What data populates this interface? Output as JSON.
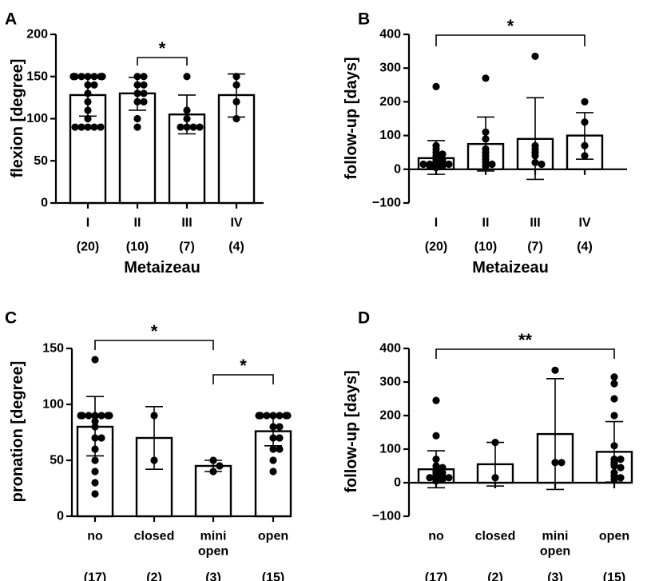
{
  "chart_data": [
    {
      "panel": "A",
      "type": "bar",
      "ylabel": "flexion [degree]",
      "xlabel": "Metaizeau",
      "ylim": [
        0,
        200
      ],
      "yticks": [
        0,
        50,
        100,
        150,
        200
      ],
      "zero_line": false,
      "categories": [
        "I",
        "II",
        "III",
        "IV"
      ],
      "counts": [
        "(20)",
        "(10)",
        "(7)",
        "(4)"
      ],
      "means": [
        128,
        130,
        105,
        128
      ],
      "sd_upper": [
        152,
        149,
        128,
        153
      ],
      "sd_lower": [
        103,
        110,
        82,
        102
      ],
      "points": [
        [
          150,
          150,
          150,
          150,
          150,
          150,
          150,
          150,
          150,
          140,
          140,
          130,
          120,
          110,
          100,
          90,
          90,
          90,
          90,
          90
        ],
        [
          150,
          150,
          140,
          140,
          130,
          130,
          120,
          120,
          100,
          90
        ],
        [
          150,
          110,
          100,
          90,
          90,
          90,
          90
        ],
        [
          150,
          140,
          120,
          100
        ]
      ],
      "significance": [
        {
          "from": 1,
          "to": 2,
          "label": "*"
        }
      ]
    },
    {
      "panel": "B",
      "type": "bar",
      "ylabel": "follow-up [days]",
      "xlabel": "Metaizeau",
      "ylim": [
        -100,
        400
      ],
      "yticks": [
        -100,
        0,
        100,
        200,
        300,
        400
      ],
      "zero_line": true,
      "categories": [
        "I",
        "II",
        "III",
        "IV"
      ],
      "counts": [
        "(20)",
        "(10)",
        "(7)",
        "(4)"
      ],
      "means": [
        33,
        75,
        90,
        100
      ],
      "sd_upper": [
        85,
        155,
        212,
        168
      ],
      "sd_lower": [
        -15,
        -5,
        -30,
        30
      ],
      "points": [
        [
          245,
          70,
          60,
          50,
          45,
          40,
          35,
          30,
          30,
          25,
          25,
          20,
          20,
          15,
          15,
          15,
          10,
          10,
          10,
          5
        ],
        [
          270,
          110,
          90,
          60,
          50,
          40,
          30,
          20,
          15,
          10
        ],
        [
          335,
          70,
          60,
          50,
          40,
          20,
          15
        ],
        [
          200,
          140,
          70,
          40
        ]
      ],
      "significance": [
        {
          "from": 0,
          "to": 3,
          "label": "*"
        }
      ]
    },
    {
      "panel": "C",
      "type": "bar",
      "ylabel": "pronation [degree]",
      "xlabel": "",
      "ylim": [
        0,
        150
      ],
      "yticks": [
        0,
        50,
        100,
        150
      ],
      "zero_line": false,
      "categories": [
        "no",
        "closed",
        "mini\nopen",
        "open"
      ],
      "counts": [
        "(17)",
        "(2)",
        "(3)",
        "(15)"
      ],
      "means": [
        80,
        70,
        45,
        76
      ],
      "sd_upper": [
        107,
        98,
        50,
        90
      ],
      "sd_lower": [
        54,
        42,
        40,
        63
      ],
      "points": [
        [
          140,
          90,
          90,
          90,
          90,
          90,
          90,
          90,
          80,
          70,
          70,
          60,
          50,
          40,
          30,
          20,
          85
        ],
        [
          90,
          50
        ],
        [
          50,
          45,
          40
        ],
        [
          90,
          90,
          90,
          90,
          90,
          90,
          90,
          80,
          80,
          70,
          70,
          60,
          60,
          50,
          40
        ]
      ],
      "significance": [
        {
          "from": 0,
          "to": 2,
          "label": "*"
        },
        {
          "from": 2,
          "to": 3,
          "label": "*"
        }
      ]
    },
    {
      "panel": "D",
      "type": "bar",
      "ylabel": "follow-up [days]",
      "xlabel": "",
      "ylim": [
        -100,
        400
      ],
      "yticks": [
        -100,
        0,
        100,
        200,
        300,
        400
      ],
      "zero_line": true,
      "categories": [
        "no",
        "closed",
        "mini\nopen",
        "open"
      ],
      "counts": [
        "(17)",
        "(2)",
        "(3)",
        "(15)"
      ],
      "means": [
        40,
        55,
        145,
        92
      ],
      "sd_upper": [
        95,
        120,
        310,
        182
      ],
      "sd_lower": [
        -15,
        -10,
        -20,
        2
      ],
      "points": [
        [
          245,
          140,
          70,
          50,
          45,
          40,
          35,
          30,
          30,
          25,
          20,
          20,
          15,
          15,
          10,
          10,
          5
        ],
        [
          120,
          15
        ],
        [
          335,
          60,
          60
        ],
        [
          315,
          295,
          250,
          200,
          110,
          70,
          70,
          60,
          55,
          50,
          45,
          30,
          20,
          15,
          10
        ]
      ],
      "significance": [
        {
          "from": 0,
          "to": 3,
          "label": "**"
        }
      ]
    }
  ]
}
